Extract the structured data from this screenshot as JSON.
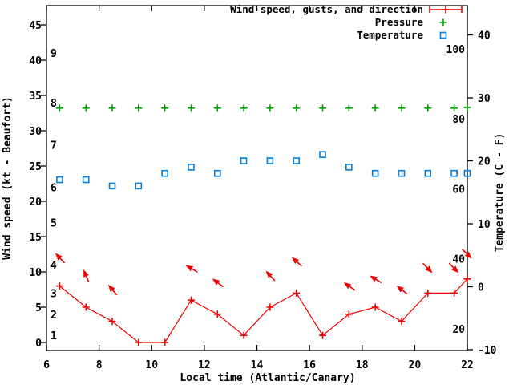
{
  "chart_data": {
    "type": "line",
    "title": "",
    "xlabel": "Local time (Atlantic/Canary)",
    "ylabel_left": "Wind speed (kt - Beaufort)",
    "ylabel_right": "Temperature (C - F)",
    "xlim": [
      6,
      22
    ],
    "x_ticks": [
      6,
      8,
      10,
      12,
      14,
      16,
      18,
      20,
      22
    ],
    "wind_ticks_kt": [
      0,
      5,
      10,
      15,
      20,
      25,
      30,
      35,
      40,
      45
    ],
    "temp_ticks_c": [
      -10,
      0,
      10,
      20,
      30,
      40
    ],
    "beaufort_scale_labels": [
      {
        "label": "1",
        "kt": 1
      },
      {
        "label": "2",
        "kt": 4
      },
      {
        "label": "3",
        "kt": 7
      },
      {
        "label": "4",
        "kt": 11
      },
      {
        "label": "5",
        "kt": 17
      },
      {
        "label": "6",
        "kt": 22
      },
      {
        "label": "7",
        "kt": 28
      },
      {
        "label": "8",
        "kt": 34
      },
      {
        "label": "9",
        "kt": 41
      }
    ],
    "fahrenheit_scale_labels": [
      {
        "label": "20",
        "f": 20
      },
      {
        "label": "40",
        "f": 40
      },
      {
        "label": "60",
        "f": 60
      },
      {
        "label": "80",
        "f": 80
      },
      {
        "label": "100",
        "f": 100
      }
    ],
    "legend": [
      {
        "label": "Wind speed, gusts, and direction",
        "marker": "errorbar-plus",
        "color": "#ee0000"
      },
      {
        "label": "Pressure",
        "marker": "plus",
        "color": "#00a400"
      },
      {
        "label": "Temperature",
        "marker": "open-square",
        "color": "#0080e0"
      }
    ],
    "colors": {
      "wind": "#ee0000",
      "pressure": "#00a400",
      "temperature": "#0080e0",
      "axis": "#000000",
      "background": "#ffffff"
    },
    "x_hours": [
      6.5,
      7.5,
      8.5,
      9.5,
      10.5,
      11.5,
      12.5,
      13.5,
      14.5,
      15.5,
      16.5,
      17.5,
      18.5,
      19.5,
      20.5,
      21.5,
      22
    ],
    "series": [
      {
        "name": "Wind speed, gusts, and direction",
        "style": "line-plus-arrows",
        "wind_speed_kt": [
          8,
          5,
          3,
          0,
          0,
          6,
          4,
          1,
          5,
          7,
          1,
          4,
          5,
          3,
          7,
          7,
          9
        ],
        "wind_gust_kt": [
          12,
          9.5,
          7.5,
          null,
          null,
          10.5,
          8.5,
          null,
          9.5,
          11.5,
          null,
          8,
          9,
          7.5,
          10.5,
          10.5,
          12.5
        ],
        "arrow_angles_deg": [
          -133,
          -113,
          -130,
          null,
          null,
          -150,
          -143,
          null,
          -132,
          -138,
          null,
          -145,
          -149,
          -142,
          45,
          45,
          45
        ]
      },
      {
        "name": "Pressure",
        "style": "plus-markers",
        "plotted_on_left_axis_kt": [
          33.2,
          33.2,
          33.2,
          33.2,
          33.2,
          33.2,
          33.2,
          33.2,
          33.2,
          33.2,
          33.2,
          33.2,
          33.2,
          33.2,
          33.2,
          33.2,
          33.3
        ]
      },
      {
        "name": "Temperature",
        "style": "square-markers",
        "temperature_c": [
          17,
          17,
          16,
          16,
          18,
          19,
          18,
          20,
          20,
          20,
          21,
          19,
          18,
          18,
          18,
          18,
          18
        ]
      }
    ]
  }
}
